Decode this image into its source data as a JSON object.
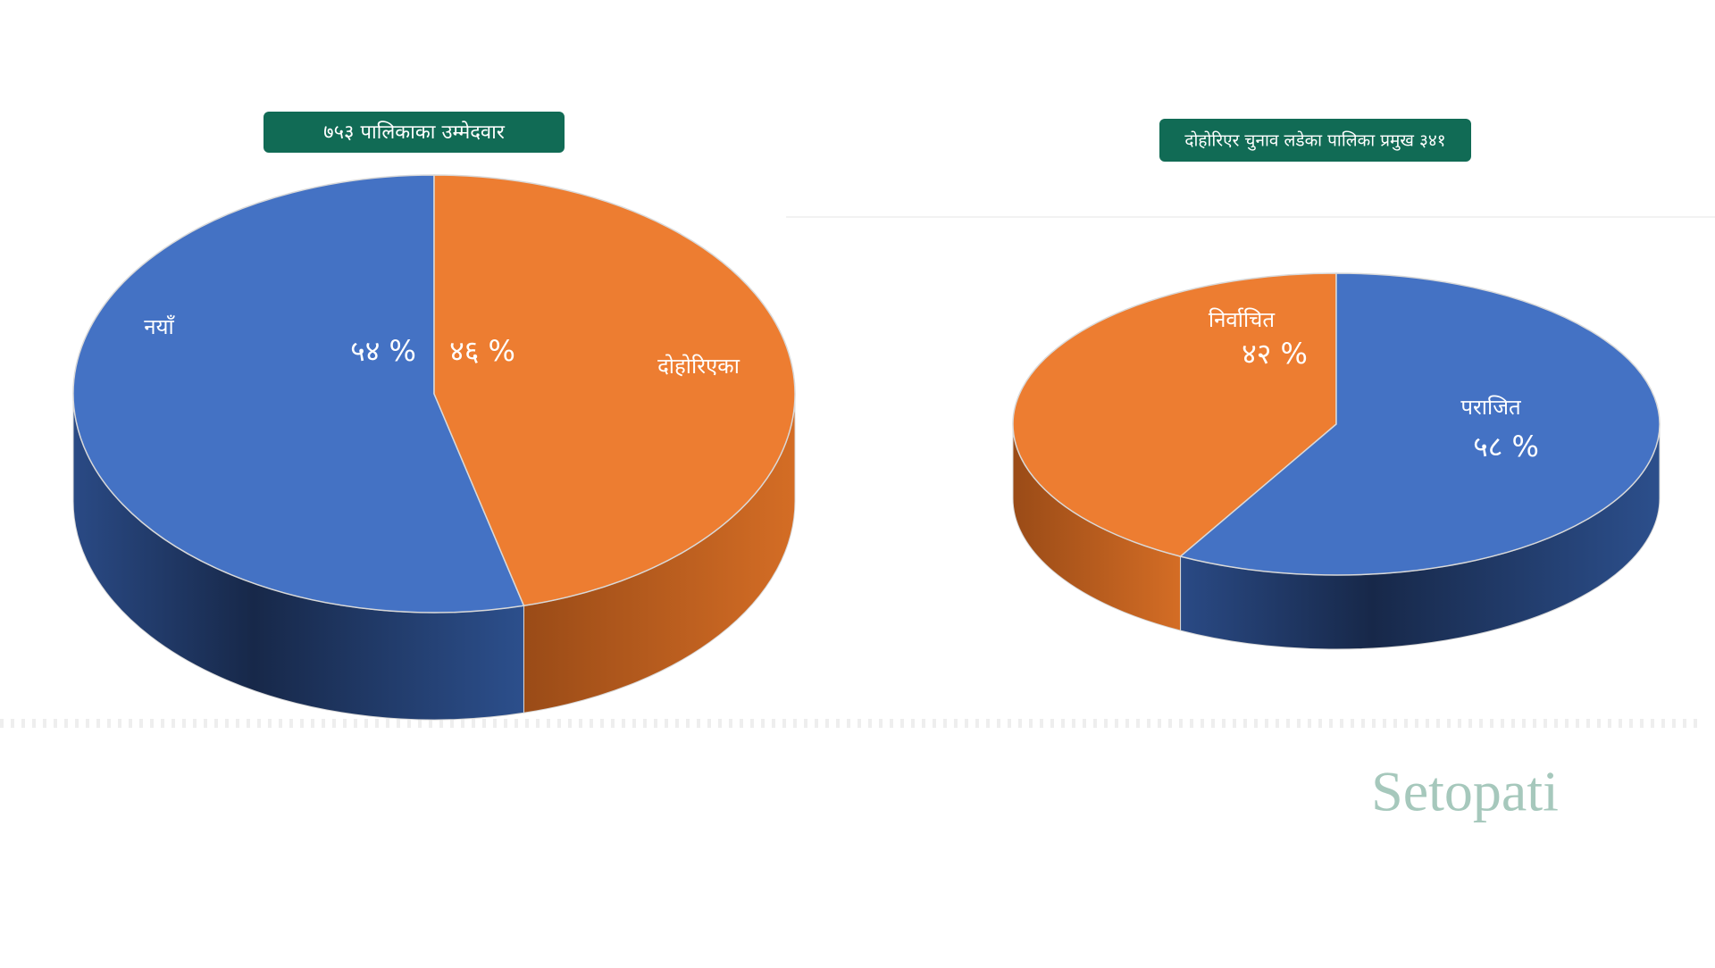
{
  "chart_data": [
    {
      "type": "pie3d",
      "title": "७५३ पालिकाका उम्मेदवार",
      "categories": [
        "नयाँ",
        "दोहोरिएका"
      ],
      "values": [
        54,
        46
      ],
      "value_labels": [
        "५४ %",
        "४६ %"
      ],
      "colors": [
        "#4472c4",
        "#ed7d31"
      ]
    },
    {
      "type": "pie3d",
      "title": "दोहोरिएर चुनाव लडेका पालिका प्रमुख ३४१",
      "categories": [
        "निर्वाचित",
        "पराजित"
      ],
      "values": [
        42,
        58
      ],
      "value_labels": [
        "४२ %",
        "५८ %"
      ],
      "colors": [
        "#ed7d31",
        "#4472c4"
      ]
    }
  ],
  "watermark": "Setopati"
}
